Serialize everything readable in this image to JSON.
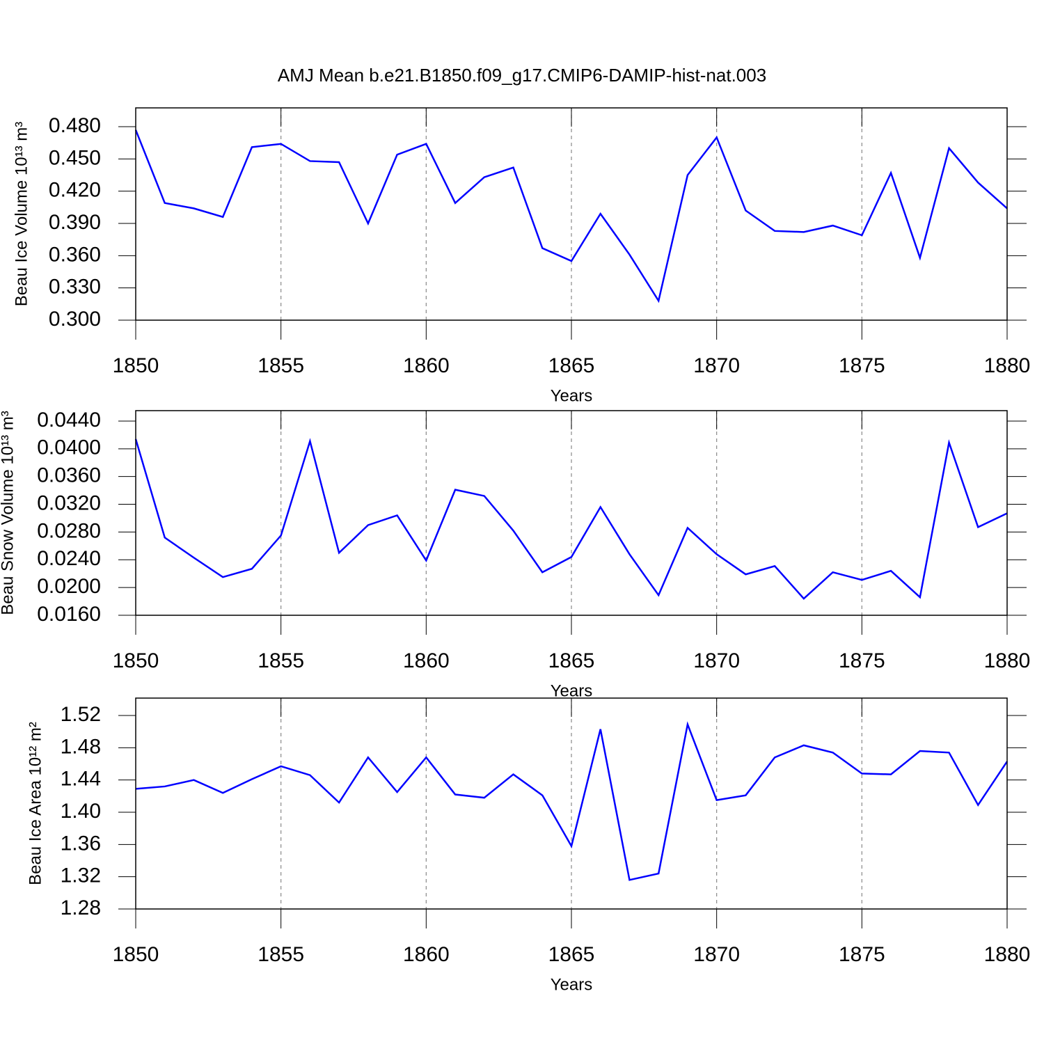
{
  "chart_data": [
    {
      "type": "line",
      "title": "AMJ Mean b.e21.B1850.f09_g17.CMIP6-DAMIP-hist-nat.003",
      "xlabel": "Years",
      "ylabel": "Beau Ice Volume 10¹³ m³",
      "color": "#0000ff",
      "xgrid": true,
      "x": [
        1850,
        1851,
        1852,
        1853,
        1854,
        1855,
        1856,
        1857,
        1858,
        1859,
        1860,
        1861,
        1862,
        1863,
        1864,
        1865,
        1866,
        1867,
        1868,
        1869,
        1870,
        1871,
        1872,
        1873,
        1874,
        1875,
        1876,
        1877,
        1878,
        1879,
        1880
      ],
      "values": [
        0.477,
        0.409,
        0.404,
        0.396,
        0.461,
        0.464,
        0.448,
        0.447,
        0.39,
        0.454,
        0.464,
        0.409,
        0.433,
        0.442,
        0.367,
        0.355,
        0.399,
        0.361,
        0.318,
        0.435,
        0.47,
        0.402,
        0.383,
        0.382,
        0.388,
        0.379,
        0.437,
        0.358,
        0.46,
        0.428,
        0.404
      ],
      "xlim": [
        1850,
        1880
      ],
      "xticks": [
        1850,
        1855,
        1860,
        1865,
        1870,
        1875,
        1880
      ],
      "ylim": [
        0.3,
        0.4975
      ],
      "yticks": [
        {
          "value": 0.3,
          "label": "0.300"
        },
        {
          "value": 0.33,
          "label": "0.330"
        },
        {
          "value": 0.36,
          "label": "0.360"
        },
        {
          "value": 0.39,
          "label": "0.390"
        },
        {
          "value": 0.42,
          "label": "0.420"
        },
        {
          "value": 0.45,
          "label": "0.450"
        },
        {
          "value": 0.48,
          "label": "0.480"
        }
      ]
    },
    {
      "type": "line",
      "xlabel": "Years",
      "ylabel": "Beau Snow Volume 10¹³ m³",
      "color": "#0000ff",
      "xgrid": true,
      "x": [
        1850,
        1851,
        1852,
        1853,
        1854,
        1855,
        1856,
        1857,
        1858,
        1859,
        1860,
        1861,
        1862,
        1863,
        1864,
        1865,
        1866,
        1867,
        1868,
        1869,
        1870,
        1871,
        1872,
        1873,
        1874,
        1875,
        1876,
        1877,
        1878,
        1879,
        1880
      ],
      "values": [
        0.0414,
        0.0272,
        0.0243,
        0.0215,
        0.0227,
        0.0275,
        0.0411,
        0.025,
        0.029,
        0.0304,
        0.0239,
        0.0341,
        0.0332,
        0.0282,
        0.0222,
        0.0244,
        0.0316,
        0.0248,
        0.0189,
        0.0286,
        0.0248,
        0.0219,
        0.0231,
        0.0184,
        0.0222,
        0.0211,
        0.0224,
        0.0186,
        0.0409,
        0.0287,
        0.0307
      ],
      "xlim": [
        1850,
        1880
      ],
      "xticks": [
        1850,
        1855,
        1860,
        1865,
        1870,
        1875,
        1880
      ],
      "ylim": [
        0.016,
        0.0455
      ],
      "yticks": [
        {
          "value": 0.016,
          "label": "0.0160"
        },
        {
          "value": 0.02,
          "label": "0.0200"
        },
        {
          "value": 0.024,
          "label": "0.0240"
        },
        {
          "value": 0.028,
          "label": "0.0280"
        },
        {
          "value": 0.032,
          "label": "0.0320"
        },
        {
          "value": 0.036,
          "label": "0.0360"
        },
        {
          "value": 0.04,
          "label": "0.0400"
        },
        {
          "value": 0.044,
          "label": "0.0440"
        }
      ]
    },
    {
      "type": "line",
      "xlabel": "Years",
      "ylabel": "Beau Ice Area 10¹² m²",
      "color": "#0000ff",
      "xgrid": true,
      "x": [
        1850,
        1851,
        1852,
        1853,
        1854,
        1855,
        1856,
        1857,
        1858,
        1859,
        1860,
        1861,
        1862,
        1863,
        1864,
        1865,
        1866,
        1867,
        1868,
        1869,
        1870,
        1871,
        1872,
        1873,
        1874,
        1875,
        1876,
        1877,
        1878,
        1879,
        1880
      ],
      "values": [
        1.429,
        1.432,
        1.44,
        1.424,
        1.441,
        1.457,
        1.446,
        1.412,
        1.468,
        1.425,
        1.468,
        1.422,
        1.418,
        1.447,
        1.421,
        1.358,
        1.503,
        1.316,
        1.324,
        1.509,
        1.415,
        1.421,
        1.468,
        1.483,
        1.474,
        1.448,
        1.447,
        1.476,
        1.474,
        1.409,
        1.463
      ],
      "xlim": [
        1850,
        1880
      ],
      "xticks": [
        1850,
        1855,
        1860,
        1865,
        1870,
        1875,
        1880
      ],
      "ylim": [
        1.28,
        1.5416
      ],
      "yticks": [
        1.28,
        1.32,
        1.36,
        {
          "value": 1.4,
          "label": "1.40"
        },
        1.44,
        1.48,
        1.52
      ]
    }
  ]
}
